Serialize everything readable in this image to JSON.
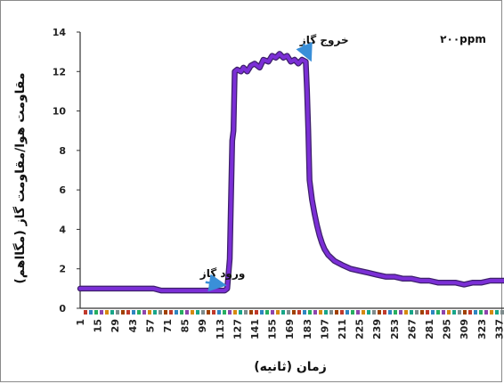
{
  "chart_data": {
    "type": "line",
    "title": "",
    "corner_label": "۲۰۰ppm",
    "xlabel": "زمان (ثانیه)",
    "ylabel": "مقاومت هوا/مقاومت گاز (مگااهم)",
    "xlim": [
      1,
      341
    ],
    "ylim": [
      0,
      14
    ],
    "y_ticks": [
      "0",
      "2",
      "4",
      "6",
      "8",
      "10",
      "12",
      "14"
    ],
    "x_ticks": [
      "1",
      "15",
      "29",
      "43",
      "57",
      "71",
      "85",
      "99",
      "113",
      "127",
      "141",
      "155",
      "169",
      "183",
      "197",
      "211",
      "225",
      "239",
      "253",
      "267",
      "281",
      "295",
      "309",
      "323",
      "337"
    ],
    "grid": false,
    "annotations": [
      {
        "text": "ورود گاز",
        "x": 113,
        "y": 1.5
      },
      {
        "text": "خروج گاز",
        "x": 183,
        "y": 12.9
      }
    ],
    "series": [
      {
        "color": "#7b2fd6",
        "x": [
          1,
          30,
          60,
          66,
          100,
          117,
          119,
          121,
          123,
          124,
          125,
          127,
          130,
          132,
          135,
          138,
          141,
          145,
          148,
          152,
          155,
          158,
          161,
          164,
          167,
          170,
          173,
          176,
          179,
          182,
          183,
          184,
          185,
          187,
          189,
          191,
          193,
          195,
          197,
          200,
          205,
          211,
          218,
          225,
          232,
          239,
          246,
          253,
          260,
          267,
          274,
          281,
          288,
          295,
          302,
          309,
          316,
          323,
          330,
          337,
          341
        ],
        "y": [
          1.0,
          1.0,
          1.0,
          0.9,
          0.9,
          0.9,
          1.0,
          2.5,
          8.5,
          9.0,
          12.0,
          12.1,
          12.0,
          12.2,
          12.0,
          12.3,
          12.4,
          12.2,
          12.6,
          12.5,
          12.8,
          12.7,
          12.9,
          12.7,
          12.8,
          12.5,
          12.6,
          12.4,
          12.6,
          12.5,
          11.0,
          9.0,
          6.5,
          5.5,
          4.8,
          4.2,
          3.7,
          3.3,
          3.0,
          2.7,
          2.4,
          2.2,
          2.0,
          1.9,
          1.8,
          1.7,
          1.6,
          1.6,
          1.5,
          1.5,
          1.4,
          1.4,
          1.3,
          1.3,
          1.3,
          1.2,
          1.3,
          1.3,
          1.4,
          1.4,
          1.4
        ]
      }
    ]
  }
}
